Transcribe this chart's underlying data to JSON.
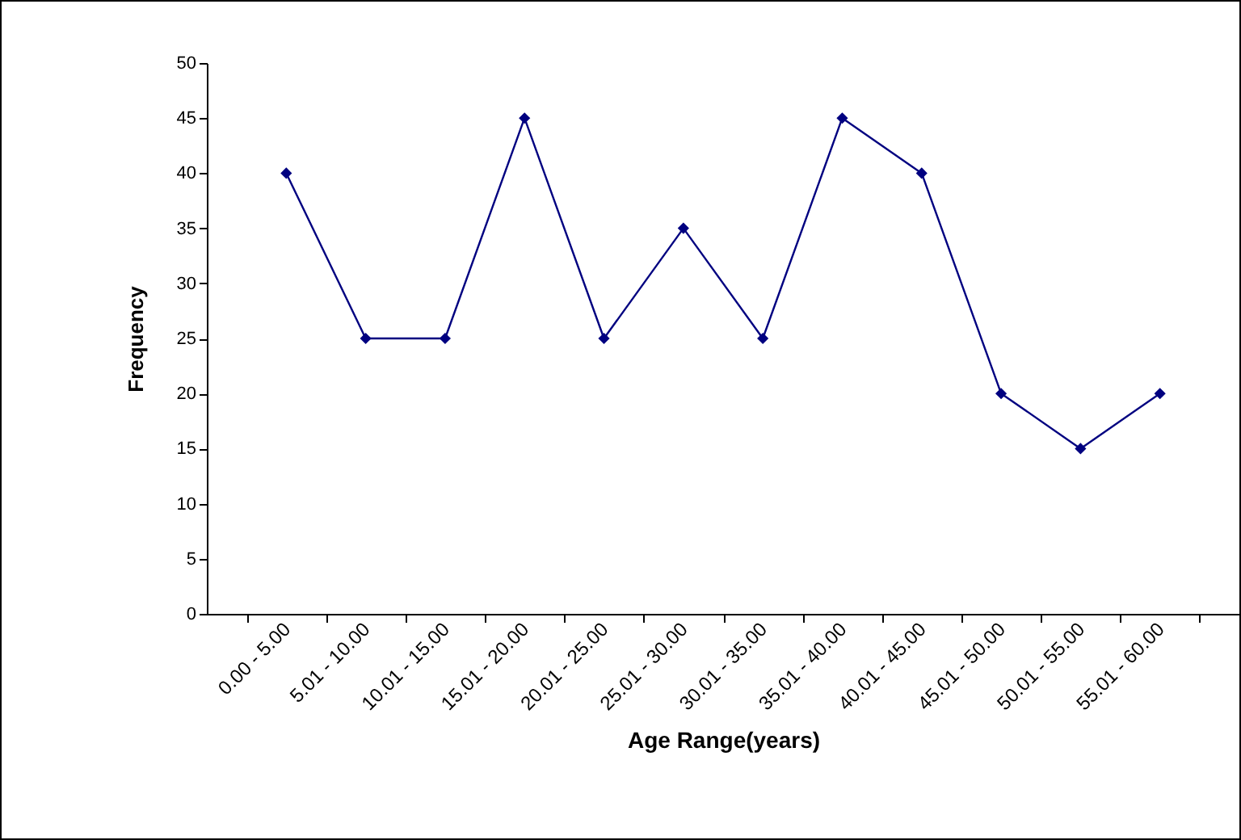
{
  "chart_data": {
    "type": "line",
    "xlabel": "Age Range(years)",
    "ylabel": "Frequency",
    "categories": [
      "0.00 - 5.00",
      "5.01 - 10.00",
      "10.01 - 15.00",
      "15.01 - 20.00",
      "20.01 - 25.00",
      "25.01 - 30.00",
      "30.01 - 35.00",
      "35.01 - 40.00",
      "40.01 - 45.00",
      "45.01 - 50.00",
      "50.01 - 55.00",
      "55.01 - 60.00"
    ],
    "series": [
      {
        "color": "#000080",
        "values": [
          40,
          25,
          25,
          45,
          25,
          35,
          25,
          45,
          40,
          20,
          15,
          20
        ]
      }
    ],
    "ylim": [
      0,
      50
    ],
    "yticks": [
      0,
      5,
      10,
      15,
      20,
      25,
      30,
      35,
      40,
      45,
      50
    ],
    "grid": false,
    "legend": false,
    "marker": "diamond",
    "line_style": "solid"
  }
}
